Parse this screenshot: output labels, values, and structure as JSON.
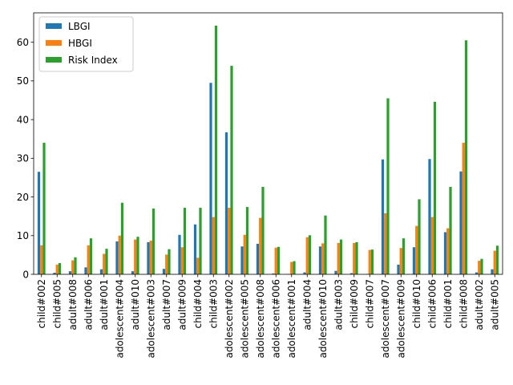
{
  "chart_data": {
    "type": "bar",
    "categories": [
      "child#002",
      "child#005",
      "adult#008",
      "adult#006",
      "adult#001",
      "adolescent#004",
      "adult#010",
      "adolescent#003",
      "adult#007",
      "adult#009",
      "child#004",
      "child#003",
      "adolescent#002",
      "adolescent#005",
      "adolescent#008",
      "adolescent#006",
      "adolescent#001",
      "adult#004",
      "adolescent#010",
      "adult#003",
      "child#009",
      "child#007",
      "adolescent#007",
      "adolescent#009",
      "child#010",
      "child#006",
      "child#001",
      "child#008",
      "adult#002",
      "adult#005"
    ],
    "series": [
      {
        "name": "LBGI",
        "color": "#1f77b4",
        "values": [
          26.5,
          0.4,
          0.8,
          1.8,
          1.3,
          8.5,
          0.8,
          8.3,
          1.4,
          10.2,
          12.9,
          49.5,
          36.7,
          7.2,
          7.9,
          0.2,
          0.1,
          0.5,
          7.2,
          0.9,
          0.3,
          0.1,
          29.7,
          2.5,
          7.0,
          29.8,
          10.9,
          26.6,
          0.5,
          1.3
        ]
      },
      {
        "name": "HBGI",
        "color": "#ff7f0e",
        "values": [
          7.5,
          2.5,
          3.6,
          7.5,
          5.3,
          10.0,
          9.0,
          8.7,
          5.1,
          7.0,
          4.3,
          14.8,
          17.2,
          10.2,
          14.6,
          6.9,
          3.2,
          9.6,
          8.0,
          8.1,
          8.1,
          6.3,
          15.8,
          6.8,
          12.5,
          14.8,
          11.9,
          34.0,
          3.5,
          6.1
        ]
      },
      {
        "name": "Risk Index",
        "color": "#2ca02c",
        "values": [
          34.0,
          2.9,
          4.4,
          9.3,
          6.6,
          18.5,
          9.7,
          17.0,
          6.5,
          17.2,
          17.2,
          64.3,
          53.9,
          17.4,
          22.6,
          7.1,
          3.4,
          10.1,
          15.2,
          9.0,
          8.3,
          6.4,
          45.5,
          9.3,
          19.4,
          44.6,
          22.6,
          60.5,
          4.0,
          7.4
        ]
      }
    ],
    "y_ticks": [
      0,
      10,
      20,
      30,
      40,
      50,
      60
    ],
    "ylim": [
      0,
      67.6
    ],
    "legend_position": "top-left",
    "grid": false
  }
}
